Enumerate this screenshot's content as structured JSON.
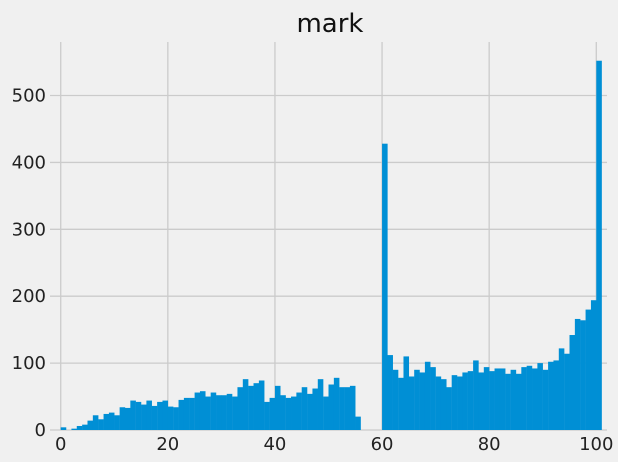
{
  "chart_data": {
    "type": "histogram",
    "title": "mark",
    "xlabel": "",
    "ylabel": "",
    "xlim": [
      -2,
      102
    ],
    "ylim": [
      0,
      580
    ],
    "x_ticks": [
      0,
      20,
      40,
      60,
      80,
      100
    ],
    "y_ticks": [
      0,
      100,
      200,
      300,
      400,
      500
    ],
    "grid": true,
    "bar_color": "#008fd5",
    "bin_edges_start": 0,
    "bin_width": 1,
    "values": [
      4,
      0,
      2,
      6,
      8,
      14,
      22,
      16,
      24,
      26,
      22,
      34,
      33,
      44,
      42,
      38,
      44,
      36,
      42,
      44,
      35,
      34,
      45,
      48,
      48,
      56,
      58,
      50,
      56,
      52,
      52,
      54,
      50,
      64,
      76,
      66,
      70,
      74,
      42,
      48,
      66,
      52,
      48,
      50,
      56,
      64,
      54,
      62,
      76,
      50,
      68,
      78,
      64,
      64,
      66,
      20,
      0,
      0,
      0,
      0,
      428,
      112,
      90,
      78,
      110,
      80,
      90,
      86,
      102,
      94,
      80,
      76,
      64,
      82,
      80,
      86,
      88,
      104,
      86,
      94,
      88,
      92,
      92,
      84,
      90,
      84,
      94,
      96,
      92,
      100,
      90,
      102,
      104,
      122,
      114,
      142,
      166,
      164,
      180,
      194,
      552
    ]
  },
  "colors": {
    "background": "#f0f0f0",
    "grid": "#cbcbcb",
    "bar": "#008fd5"
  }
}
